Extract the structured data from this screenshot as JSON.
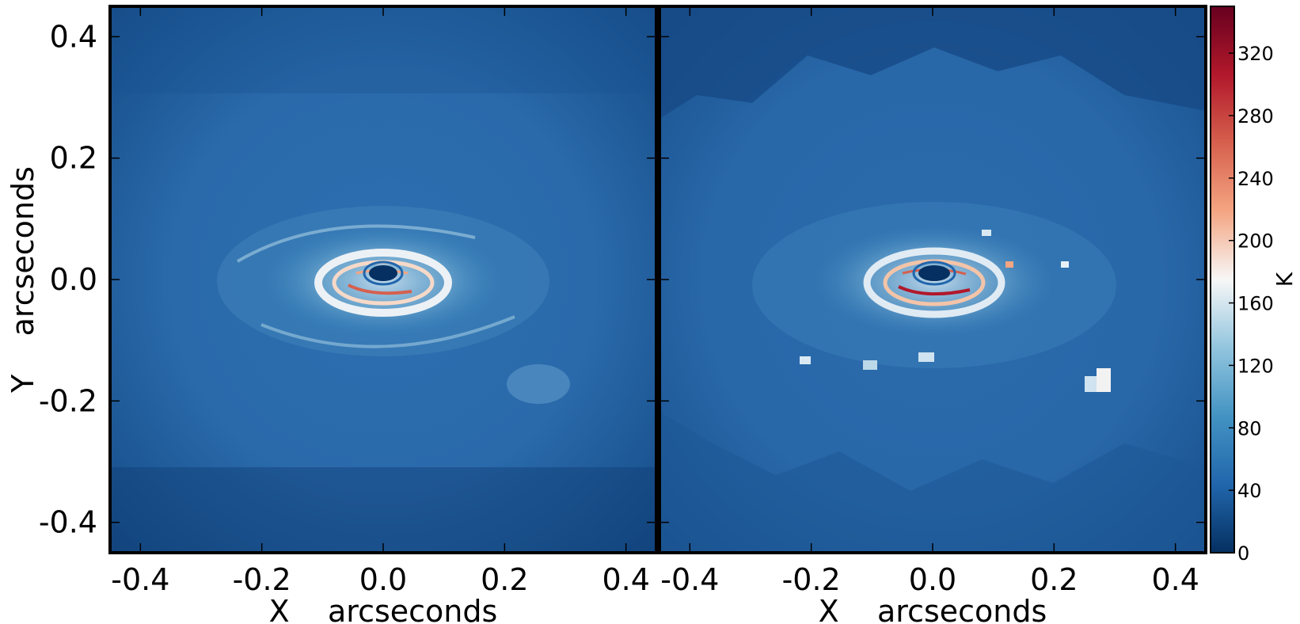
{
  "chart_data": [
    {
      "type": "heatmap",
      "panel": "left",
      "xlabel": "X    arcseconds",
      "ylabel": "Y    arcseconds",
      "xlim": [
        -0.45,
        0.45
      ],
      "ylim": [
        -0.45,
        0.45
      ],
      "xticks": [
        -0.4,
        -0.2,
        0.0,
        0.2,
        0.4
      ],
      "yticks": [
        -0.4,
        -0.2,
        0.0,
        0.2,
        0.4
      ],
      "xtick_labels": [
        "-0.4",
        "-0.2",
        "0.0",
        "0.2",
        "0.4"
      ],
      "ytick_labels": [
        "-0.4",
        "-0.2",
        "0.0",
        "0.2",
        "0.4"
      ],
      "grid": false
    },
    {
      "type": "heatmap",
      "panel": "right",
      "xlabel": "X    arcseconds",
      "xlim": [
        -0.45,
        0.45
      ],
      "ylim": [
        -0.45,
        0.45
      ],
      "xticks": [
        -0.4,
        -0.2,
        0.0,
        0.2,
        0.4
      ],
      "xtick_labels": [
        "-0.4",
        "-0.2",
        "0.0",
        "0.2",
        "0.4"
      ],
      "grid": false
    }
  ],
  "colorbar": {
    "label": "K",
    "range": [
      0,
      350
    ],
    "ticks": [
      0,
      40,
      80,
      120,
      160,
      200,
      240,
      280,
      320
    ],
    "tick_labels": [
      "0",
      "40",
      "80",
      "120",
      "160",
      "200",
      "240",
      "280",
      "320"
    ],
    "colors": [
      "#053061",
      "#2166ac",
      "#4393c3",
      "#92c5de",
      "#f7f7f7",
      "#f4a582",
      "#d6604d",
      "#b2182b",
      "#67001f"
    ]
  }
}
